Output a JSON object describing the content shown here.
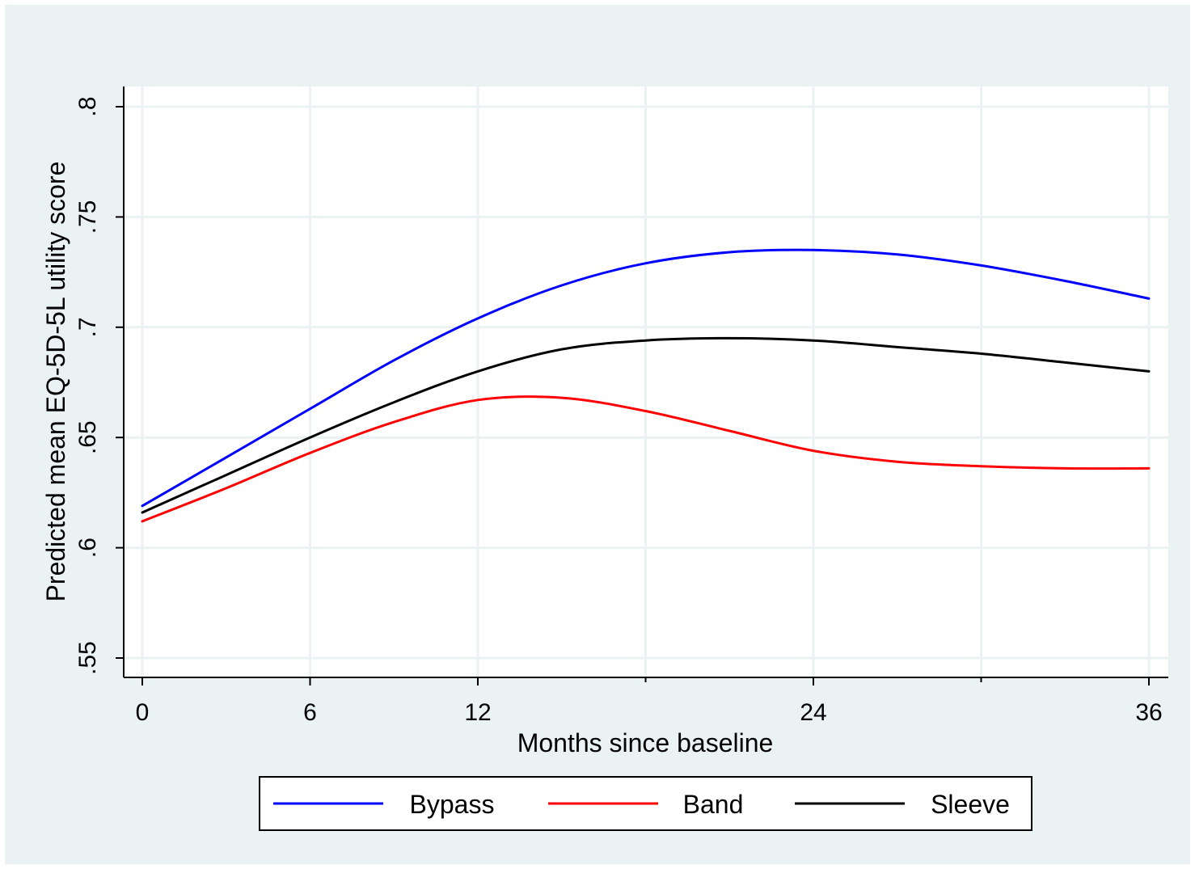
{
  "colors": {
    "page_background": "#ffffff",
    "graph_region": "#eaf2f3",
    "plot_background": "#ffffff",
    "gridline": "#eaf2f3",
    "axis": "#000000",
    "bypass": "#0000ff",
    "band": "#ff0000",
    "sleeve": "#000000"
  },
  "chart_data": {
    "type": "line",
    "title": "",
    "xlabel": "Months since baseline",
    "ylabel": "Predicted mean EQ-5D-5L utility score",
    "xlim": [
      0,
      36
    ],
    "ylim": [
      0.55,
      0.8
    ],
    "x_ticks": [
      0,
      6,
      12,
      24,
      36
    ],
    "x_tick_labels": [
      "0",
      "6",
      "12",
      "24",
      "36"
    ],
    "x_minor_ticks": [
      18,
      30
    ],
    "y_ticks": [
      0.55,
      0.6,
      0.65,
      0.7,
      0.75,
      0.8
    ],
    "y_tick_labels": [
      ".55",
      ".6",
      ".65",
      ".7",
      ".75",
      ".8"
    ],
    "grid": true,
    "legend_position": "bottom",
    "x": [
      0,
      3,
      6,
      9,
      12,
      15,
      18,
      21,
      24,
      27,
      30,
      33,
      36
    ],
    "series": [
      {
        "name": "Bypass",
        "color_key": "bypass",
        "values": [
          0.619,
          0.641,
          0.663,
          0.685,
          0.704,
          0.719,
          0.729,
          0.734,
          0.735,
          0.733,
          0.728,
          0.721,
          0.713
        ]
      },
      {
        "name": "Band",
        "color_key": "band",
        "values": [
          0.612,
          0.627,
          0.643,
          0.657,
          0.667,
          0.668,
          0.662,
          0.653,
          0.644,
          0.639,
          0.637,
          0.636,
          0.636
        ]
      },
      {
        "name": "Sleeve",
        "color_key": "sleeve",
        "values": [
          0.616,
          0.633,
          0.65,
          0.666,
          0.68,
          0.69,
          0.694,
          0.695,
          0.694,
          0.691,
          0.688,
          0.684,
          0.68
        ]
      }
    ]
  }
}
